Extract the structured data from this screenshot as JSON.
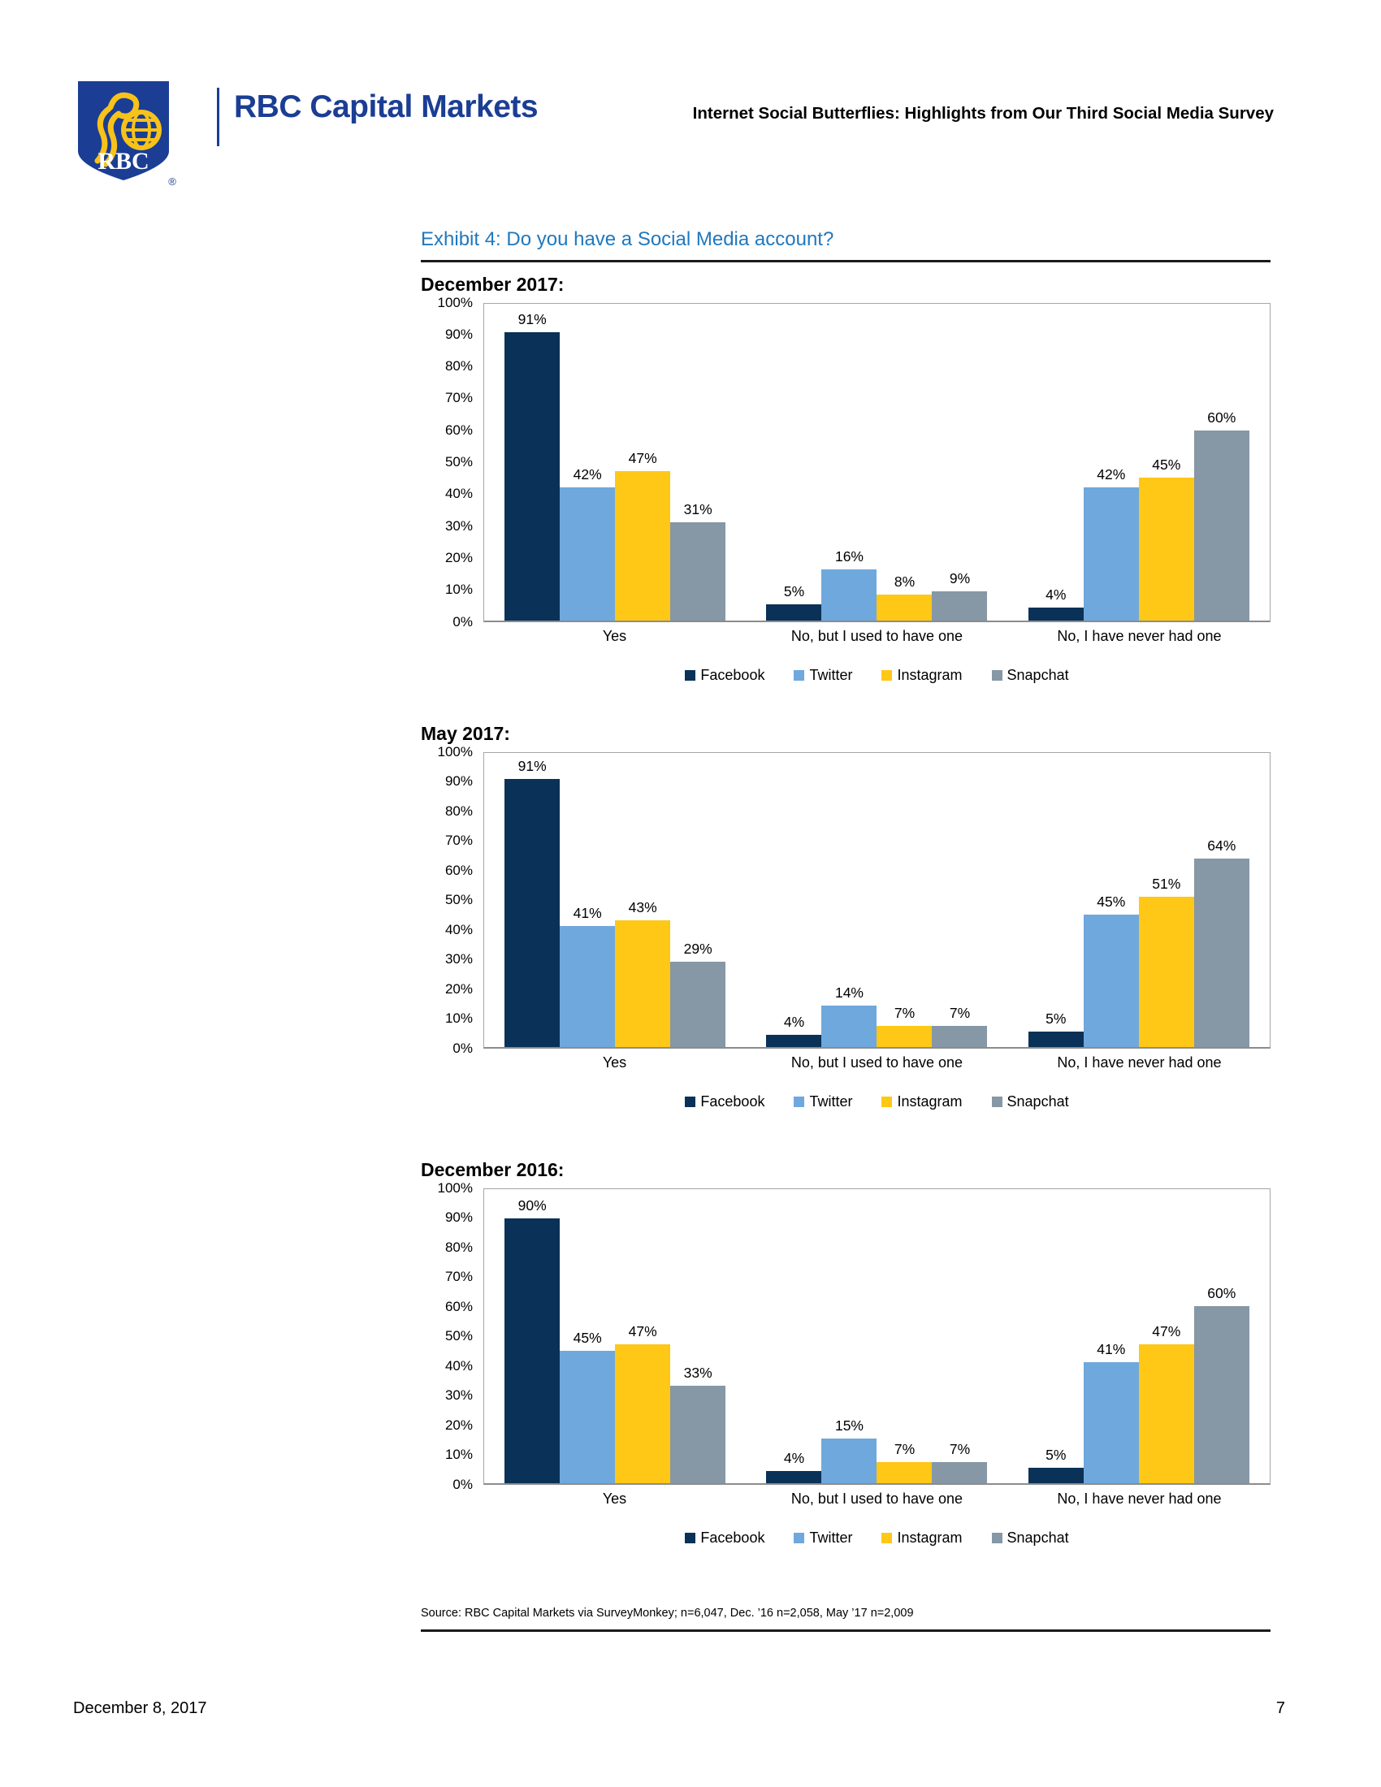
{
  "header": {
    "logo_text": "RBC",
    "logo_registered": "®",
    "brand": "RBC Capital Markets",
    "doc_title": "Internet Social Butterflies: Highlights from Our Third Social Media Survey"
  },
  "exhibit_title": "Exhibit 4: Do you have a Social Media account?",
  "colors": {
    "facebook": "#0A3157",
    "twitter": "#6FA8DC",
    "instagram": "#FFC716",
    "snapchat": "#8697A5",
    "brand_blue": "#1B3E94",
    "exhibit_blue": "#1F78BE"
  },
  "chart_data": [
    {
      "type": "bar",
      "title": "December 2017:",
      "categories": [
        "Yes",
        "No, but I used to have one",
        "No, I have never had one"
      ],
      "series": [
        {
          "name": "Facebook",
          "color": "#0A3157",
          "values": [
            91,
            5,
            4
          ]
        },
        {
          "name": "Twitter",
          "color": "#6FA8DC",
          "values": [
            42,
            16,
            42
          ]
        },
        {
          "name": "Instagram",
          "color": "#FFC716",
          "values": [
            47,
            8,
            45
          ]
        },
        {
          "name": "Snapchat",
          "color": "#8697A5",
          "values": [
            31,
            9,
            60
          ]
        }
      ],
      "ylabel": "",
      "xlabel": "",
      "ylim": [
        0,
        100
      ],
      "ytick_step": 10,
      "ytick_suffix": "%",
      "data_label_suffix": "%",
      "grid": false,
      "legend_position": "bottom"
    },
    {
      "type": "bar",
      "title": "May 2017:",
      "categories": [
        "Yes",
        "No, but I used to have one",
        "No, I have never had one"
      ],
      "series": [
        {
          "name": "Facebook",
          "color": "#0A3157",
          "values": [
            91,
            4,
            5
          ]
        },
        {
          "name": "Twitter",
          "color": "#6FA8DC",
          "values": [
            41,
            14,
            45
          ]
        },
        {
          "name": "Instagram",
          "color": "#FFC716",
          "values": [
            43,
            7,
            51
          ]
        },
        {
          "name": "Snapchat",
          "color": "#8697A5",
          "values": [
            29,
            7,
            64
          ]
        }
      ],
      "ylabel": "",
      "xlabel": "",
      "ylim": [
        0,
        100
      ],
      "ytick_step": 10,
      "ytick_suffix": "%",
      "data_label_suffix": "%",
      "grid": false,
      "legend_position": "bottom"
    },
    {
      "type": "bar",
      "title": "December 2016:",
      "categories": [
        "Yes",
        "No, but I used to have one",
        "No, I have never had one"
      ],
      "series": [
        {
          "name": "Facebook",
          "color": "#0A3157",
          "values": [
            90,
            4,
            5
          ]
        },
        {
          "name": "Twitter",
          "color": "#6FA8DC",
          "values": [
            45,
            15,
            41
          ]
        },
        {
          "name": "Instagram",
          "color": "#FFC716",
          "values": [
            47,
            7,
            47
          ]
        },
        {
          "name": "Snapchat",
          "color": "#8697A5",
          "values": [
            33,
            7,
            60
          ]
        }
      ],
      "ylabel": "",
      "xlabel": "",
      "ylim": [
        0,
        100
      ],
      "ytick_step": 10,
      "ytick_suffix": "%",
      "data_label_suffix": "%",
      "grid": false,
      "legend_position": "bottom"
    }
  ],
  "source": "Source: RBC Capital Markets via SurveyMonkey; n=6,047, Dec. ’16 n=2,058, May ’17 n=2,009",
  "footer": {
    "date": "December 8, 2017",
    "page": "7"
  }
}
